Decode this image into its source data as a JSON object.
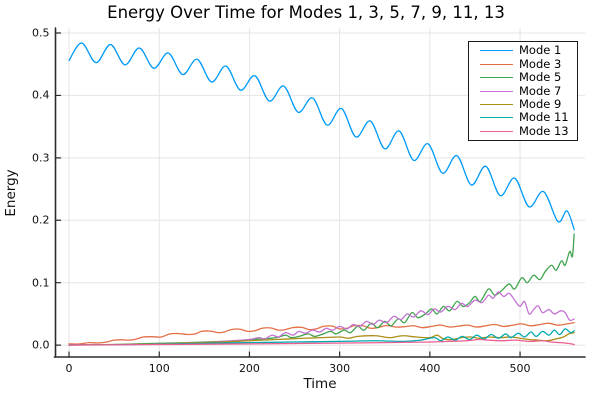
{
  "page": {
    "background": "#ffffff"
  },
  "chart_data": {
    "type": "line",
    "title": "Energy Over Time for Modes 1, 3, 5, 7, 9, 11, 13",
    "xlabel": "Time",
    "ylabel": "Energy",
    "xlim": [
      -15,
      572
    ],
    "ylim": [
      -0.019,
      0.508
    ],
    "grid": true,
    "legend_position": "top-right",
    "xticks": {
      "values": [
        0,
        100,
        200,
        300,
        400,
        500
      ],
      "labels": [
        "0",
        "100",
        "200",
        "300",
        "400",
        "500"
      ]
    },
    "yticks": {
      "values": [
        0.0,
        0.1,
        0.2,
        0.3,
        0.4,
        0.5
      ],
      "labels": [
        "0.0",
        "0.1",
        "0.2",
        "0.3",
        "0.4",
        "0.5"
      ]
    },
    "style": {
      "grid_color": "#e4e4e4",
      "spine_color": "#2b2b2b",
      "tick_label_color": "#111111",
      "line_width": 1.3
    },
    "series": [
      {
        "name": "Mode 1",
        "color": "#009AFA",
        "points": [
          [
            0,
            0.456
          ],
          [
            14,
            0.484
          ],
          [
            30,
            0.4525
          ],
          [
            46,
            0.4815
          ],
          [
            62,
            0.449
          ],
          [
            78,
            0.476
          ],
          [
            94,
            0.4435
          ],
          [
            110,
            0.468
          ],
          [
            126,
            0.4335
          ],
          [
            142,
            0.458
          ],
          [
            158,
            0.4215
          ],
          [
            174,
            0.447
          ],
          [
            190,
            0.4085
          ],
          [
            206,
            0.4315
          ],
          [
            222,
            0.391
          ],
          [
            238,
            0.415
          ],
          [
            254,
            0.373
          ],
          [
            270,
            0.396
          ],
          [
            286,
            0.3525
          ],
          [
            302,
            0.379
          ],
          [
            318,
            0.3335
          ],
          [
            334,
            0.359
          ],
          [
            350,
            0.3145
          ],
          [
            366,
            0.343
          ],
          [
            382,
            0.296
          ],
          [
            398,
            0.3225
          ],
          [
            414,
            0.2755
          ],
          [
            430,
            0.3035
          ],
          [
            446,
            0.2565
          ],
          [
            462,
            0.2865
          ],
          [
            478,
            0.2395
          ],
          [
            494,
            0.2675
          ],
          [
            510,
            0.2215
          ],
          [
            526,
            0.246
          ],
          [
            542,
            0.198
          ],
          [
            552,
            0.215
          ],
          [
            560,
            0.185
          ]
        ]
      },
      {
        "name": "Mode 3",
        "color": "#E36F47",
        "points": [
          [
            0,
            0.002
          ],
          [
            12,
            0.002
          ],
          [
            22,
            0.004
          ],
          [
            32,
            0.0035
          ],
          [
            42,
            0.005
          ],
          [
            50,
            0.008
          ],
          [
            58,
            0.0085
          ],
          [
            66,
            0.008
          ],
          [
            74,
            0.0095
          ],
          [
            82,
            0.013
          ],
          [
            92,
            0.0135
          ],
          [
            102,
            0.013
          ],
          [
            112,
            0.018
          ],
          [
            122,
            0.0185
          ],
          [
            132,
            0.017
          ],
          [
            140,
            0.018
          ],
          [
            147,
            0.022
          ],
          [
            157,
            0.0225
          ],
          [
            165,
            0.02
          ],
          [
            172,
            0.021
          ],
          [
            180,
            0.025
          ],
          [
            190,
            0.0255
          ],
          [
            198,
            0.022
          ],
          [
            206,
            0.023
          ],
          [
            214,
            0.027
          ],
          [
            224,
            0.0275
          ],
          [
            232,
            0.024
          ],
          [
            240,
            0.025
          ],
          [
            248,
            0.028
          ],
          [
            258,
            0.0285
          ],
          [
            266,
            0.025
          ],
          [
            274,
            0.026
          ],
          [
            282,
            0.03
          ],
          [
            292,
            0.0305
          ],
          [
            300,
            0.026
          ],
          [
            308,
            0.027
          ],
          [
            316,
            0.031
          ],
          [
            326,
            0.031
          ],
          [
            334,
            0.027
          ],
          [
            342,
            0.028
          ],
          [
            352,
            0.0315
          ],
          [
            362,
            0.029
          ],
          [
            372,
            0.0295
          ],
          [
            382,
            0.031
          ],
          [
            392,
            0.028
          ],
          [
            402,
            0.03
          ],
          [
            412,
            0.032
          ],
          [
            422,
            0.029
          ],
          [
            432,
            0.0305
          ],
          [
            442,
            0.032
          ],
          [
            452,
            0.029
          ],
          [
            462,
            0.031
          ],
          [
            472,
            0.033
          ],
          [
            482,
            0.03
          ],
          [
            492,
            0.032
          ],
          [
            502,
            0.034
          ],
          [
            512,
            0.031
          ],
          [
            522,
            0.033
          ],
          [
            532,
            0.035
          ],
          [
            542,
            0.032
          ],
          [
            552,
            0.034
          ],
          [
            560,
            0.036
          ]
        ]
      },
      {
        "name": "Mode 5",
        "color": "#3EA44E",
        "points": [
          [
            0,
            0.0005
          ],
          [
            50,
            0.001
          ],
          [
            100,
            0.003
          ],
          [
            130,
            0.004
          ],
          [
            150,
            0.005
          ],
          [
            170,
            0.006
          ],
          [
            185,
            0.007
          ],
          [
            200,
            0.009
          ],
          [
            215,
            0.01
          ],
          [
            230,
            0.012
          ],
          [
            240,
            0.016
          ],
          [
            246,
            0.012
          ],
          [
            255,
            0.014
          ],
          [
            265,
            0.018
          ],
          [
            272,
            0.014
          ],
          [
            280,
            0.017
          ],
          [
            290,
            0.022
          ],
          [
            296,
            0.018
          ],
          [
            305,
            0.024
          ],
          [
            312,
            0.02
          ],
          [
            320,
            0.03
          ],
          [
            327,
            0.024
          ],
          [
            335,
            0.035
          ],
          [
            342,
            0.028
          ],
          [
            350,
            0.038
          ],
          [
            357,
            0.031
          ],
          [
            365,
            0.042
          ],
          [
            372,
            0.036
          ],
          [
            380,
            0.052
          ],
          [
            387,
            0.044
          ],
          [
            395,
            0.05
          ],
          [
            402,
            0.058
          ],
          [
            408,
            0.05
          ],
          [
            415,
            0.062
          ],
          [
            422,
            0.055
          ],
          [
            430,
            0.07
          ],
          [
            437,
            0.062
          ],
          [
            444,
            0.068
          ],
          [
            450,
            0.078
          ],
          [
            456,
            0.07
          ],
          [
            465,
            0.09
          ],
          [
            472,
            0.08
          ],
          [
            480,
            0.088
          ],
          [
            488,
            0.098
          ],
          [
            494,
            0.09
          ],
          [
            502,
            0.108
          ],
          [
            508,
            0.1
          ],
          [
            515,
            0.112
          ],
          [
            522,
            0.105
          ],
          [
            528,
            0.118
          ],
          [
            535,
            0.128
          ],
          [
            540,
            0.12
          ],
          [
            546,
            0.135
          ],
          [
            550,
            0.128
          ],
          [
            555,
            0.15
          ],
          [
            558,
            0.142
          ],
          [
            560,
            0.178
          ]
        ]
      },
      {
        "name": "Mode 7",
        "color": "#C371D2",
        "points": [
          [
            0,
            0.0003
          ],
          [
            60,
            0.001
          ],
          [
            100,
            0.002
          ],
          [
            140,
            0.004
          ],
          [
            160,
            0.005
          ],
          [
            180,
            0.007
          ],
          [
            200,
            0.009
          ],
          [
            210,
            0.012
          ],
          [
            217,
            0.01
          ],
          [
            225,
            0.016
          ],
          [
            232,
            0.013
          ],
          [
            240,
            0.02
          ],
          [
            248,
            0.016
          ],
          [
            255,
            0.022
          ],
          [
            262,
            0.019
          ],
          [
            270,
            0.024
          ],
          [
            278,
            0.021
          ],
          [
            285,
            0.027
          ],
          [
            292,
            0.024
          ],
          [
            300,
            0.03
          ],
          [
            308,
            0.026
          ],
          [
            315,
            0.033
          ],
          [
            322,
            0.03
          ],
          [
            330,
            0.038
          ],
          [
            337,
            0.033
          ],
          [
            344,
            0.04
          ],
          [
            352,
            0.036
          ],
          [
            360,
            0.046
          ],
          [
            368,
            0.041
          ],
          [
            375,
            0.05
          ],
          [
            382,
            0.045
          ],
          [
            390,
            0.055
          ],
          [
            398,
            0.049
          ],
          [
            405,
            0.058
          ],
          [
            412,
            0.053
          ],
          [
            420,
            0.062
          ],
          [
            428,
            0.057
          ],
          [
            435,
            0.067
          ],
          [
            442,
            0.062
          ],
          [
            450,
            0.072
          ],
          [
            458,
            0.068
          ],
          [
            465,
            0.08
          ],
          [
            470,
            0.075
          ],
          [
            476,
            0.085
          ],
          [
            482,
            0.078
          ],
          [
            488,
            0.083
          ],
          [
            495,
            0.07
          ],
          [
            500,
            0.062
          ],
          [
            505,
            0.07
          ],
          [
            510,
            0.05
          ],
          [
            515,
            0.057
          ],
          [
            520,
            0.063
          ],
          [
            525,
            0.052
          ],
          [
            532,
            0.057
          ],
          [
            538,
            0.05
          ],
          [
            545,
            0.055
          ],
          [
            550,
            0.052
          ],
          [
            555,
            0.04
          ],
          [
            560,
            0.042
          ]
        ]
      },
      {
        "name": "Mode 9",
        "color": "#AC8E18",
        "points": [
          [
            0,
            0.0002
          ],
          [
            50,
            0.001
          ],
          [
            100,
            0.002
          ],
          [
            140,
            0.004
          ],
          [
            170,
            0.005
          ],
          [
            200,
            0.007
          ],
          [
            230,
            0.009
          ],
          [
            260,
            0.011
          ],
          [
            280,
            0.012
          ],
          [
            300,
            0.013
          ],
          [
            310,
            0.011
          ],
          [
            320,
            0.014
          ],
          [
            340,
            0.015
          ],
          [
            355,
            0.012
          ],
          [
            370,
            0.015
          ],
          [
            385,
            0.013
          ],
          [
            400,
            0.012
          ],
          [
            408,
            0.016
          ],
          [
            415,
            0.01
          ],
          [
            425,
            0.009
          ],
          [
            435,
            0.012
          ],
          [
            445,
            0.013
          ],
          [
            455,
            0.011
          ],
          [
            465,
            0.013
          ],
          [
            478,
            0.012
          ],
          [
            490,
            0.013
          ],
          [
            500,
            0.011
          ],
          [
            510,
            0.009
          ],
          [
            520,
            0.008
          ],
          [
            530,
            0.007
          ],
          [
            540,
            0.01
          ],
          [
            548,
            0.013
          ],
          [
            554,
            0.018
          ],
          [
            560,
            0.02
          ]
        ]
      },
      {
        "name": "Mode 11",
        "color": "#00AAAE",
        "points": [
          [
            0,
            0.0002
          ],
          [
            80,
            0.001
          ],
          [
            150,
            0.003
          ],
          [
            200,
            0.004
          ],
          [
            250,
            0.005
          ],
          [
            300,
            0.006
          ],
          [
            340,
            0.007
          ],
          [
            370,
            0.006
          ],
          [
            390,
            0.008
          ],
          [
            405,
            0.012
          ],
          [
            412,
            0.007
          ],
          [
            420,
            0.013
          ],
          [
            428,
            0.008
          ],
          [
            436,
            0.014
          ],
          [
            444,
            0.009
          ],
          [
            452,
            0.016
          ],
          [
            460,
            0.01
          ],
          [
            468,
            0.017
          ],
          [
            476,
            0.011
          ],
          [
            484,
            0.018
          ],
          [
            490,
            0.012
          ],
          [
            498,
            0.019
          ],
          [
            505,
            0.013
          ],
          [
            512,
            0.021
          ],
          [
            518,
            0.014
          ],
          [
            525,
            0.022
          ],
          [
            532,
            0.016
          ],
          [
            538,
            0.024
          ],
          [
            544,
            0.017
          ],
          [
            550,
            0.026
          ],
          [
            556,
            0.02
          ],
          [
            560,
            0.023
          ]
        ]
      },
      {
        "name": "Mode 13",
        "color": "#ED5E93",
        "points": [
          [
            0,
            0.0001
          ],
          [
            100,
            0.001
          ],
          [
            200,
            0.002
          ],
          [
            280,
            0.003
          ],
          [
            350,
            0.004
          ],
          [
            400,
            0.005
          ],
          [
            420,
            0.006
          ],
          [
            440,
            0.007
          ],
          [
            455,
            0.009
          ],
          [
            465,
            0.008
          ],
          [
            480,
            0.007
          ],
          [
            495,
            0.008
          ],
          [
            510,
            0.006
          ],
          [
            525,
            0.007
          ],
          [
            535,
            0.005
          ],
          [
            545,
            0.004
          ],
          [
            552,
            0.003
          ],
          [
            557,
            0.002
          ],
          [
            560,
            0.001
          ]
        ]
      }
    ]
  }
}
